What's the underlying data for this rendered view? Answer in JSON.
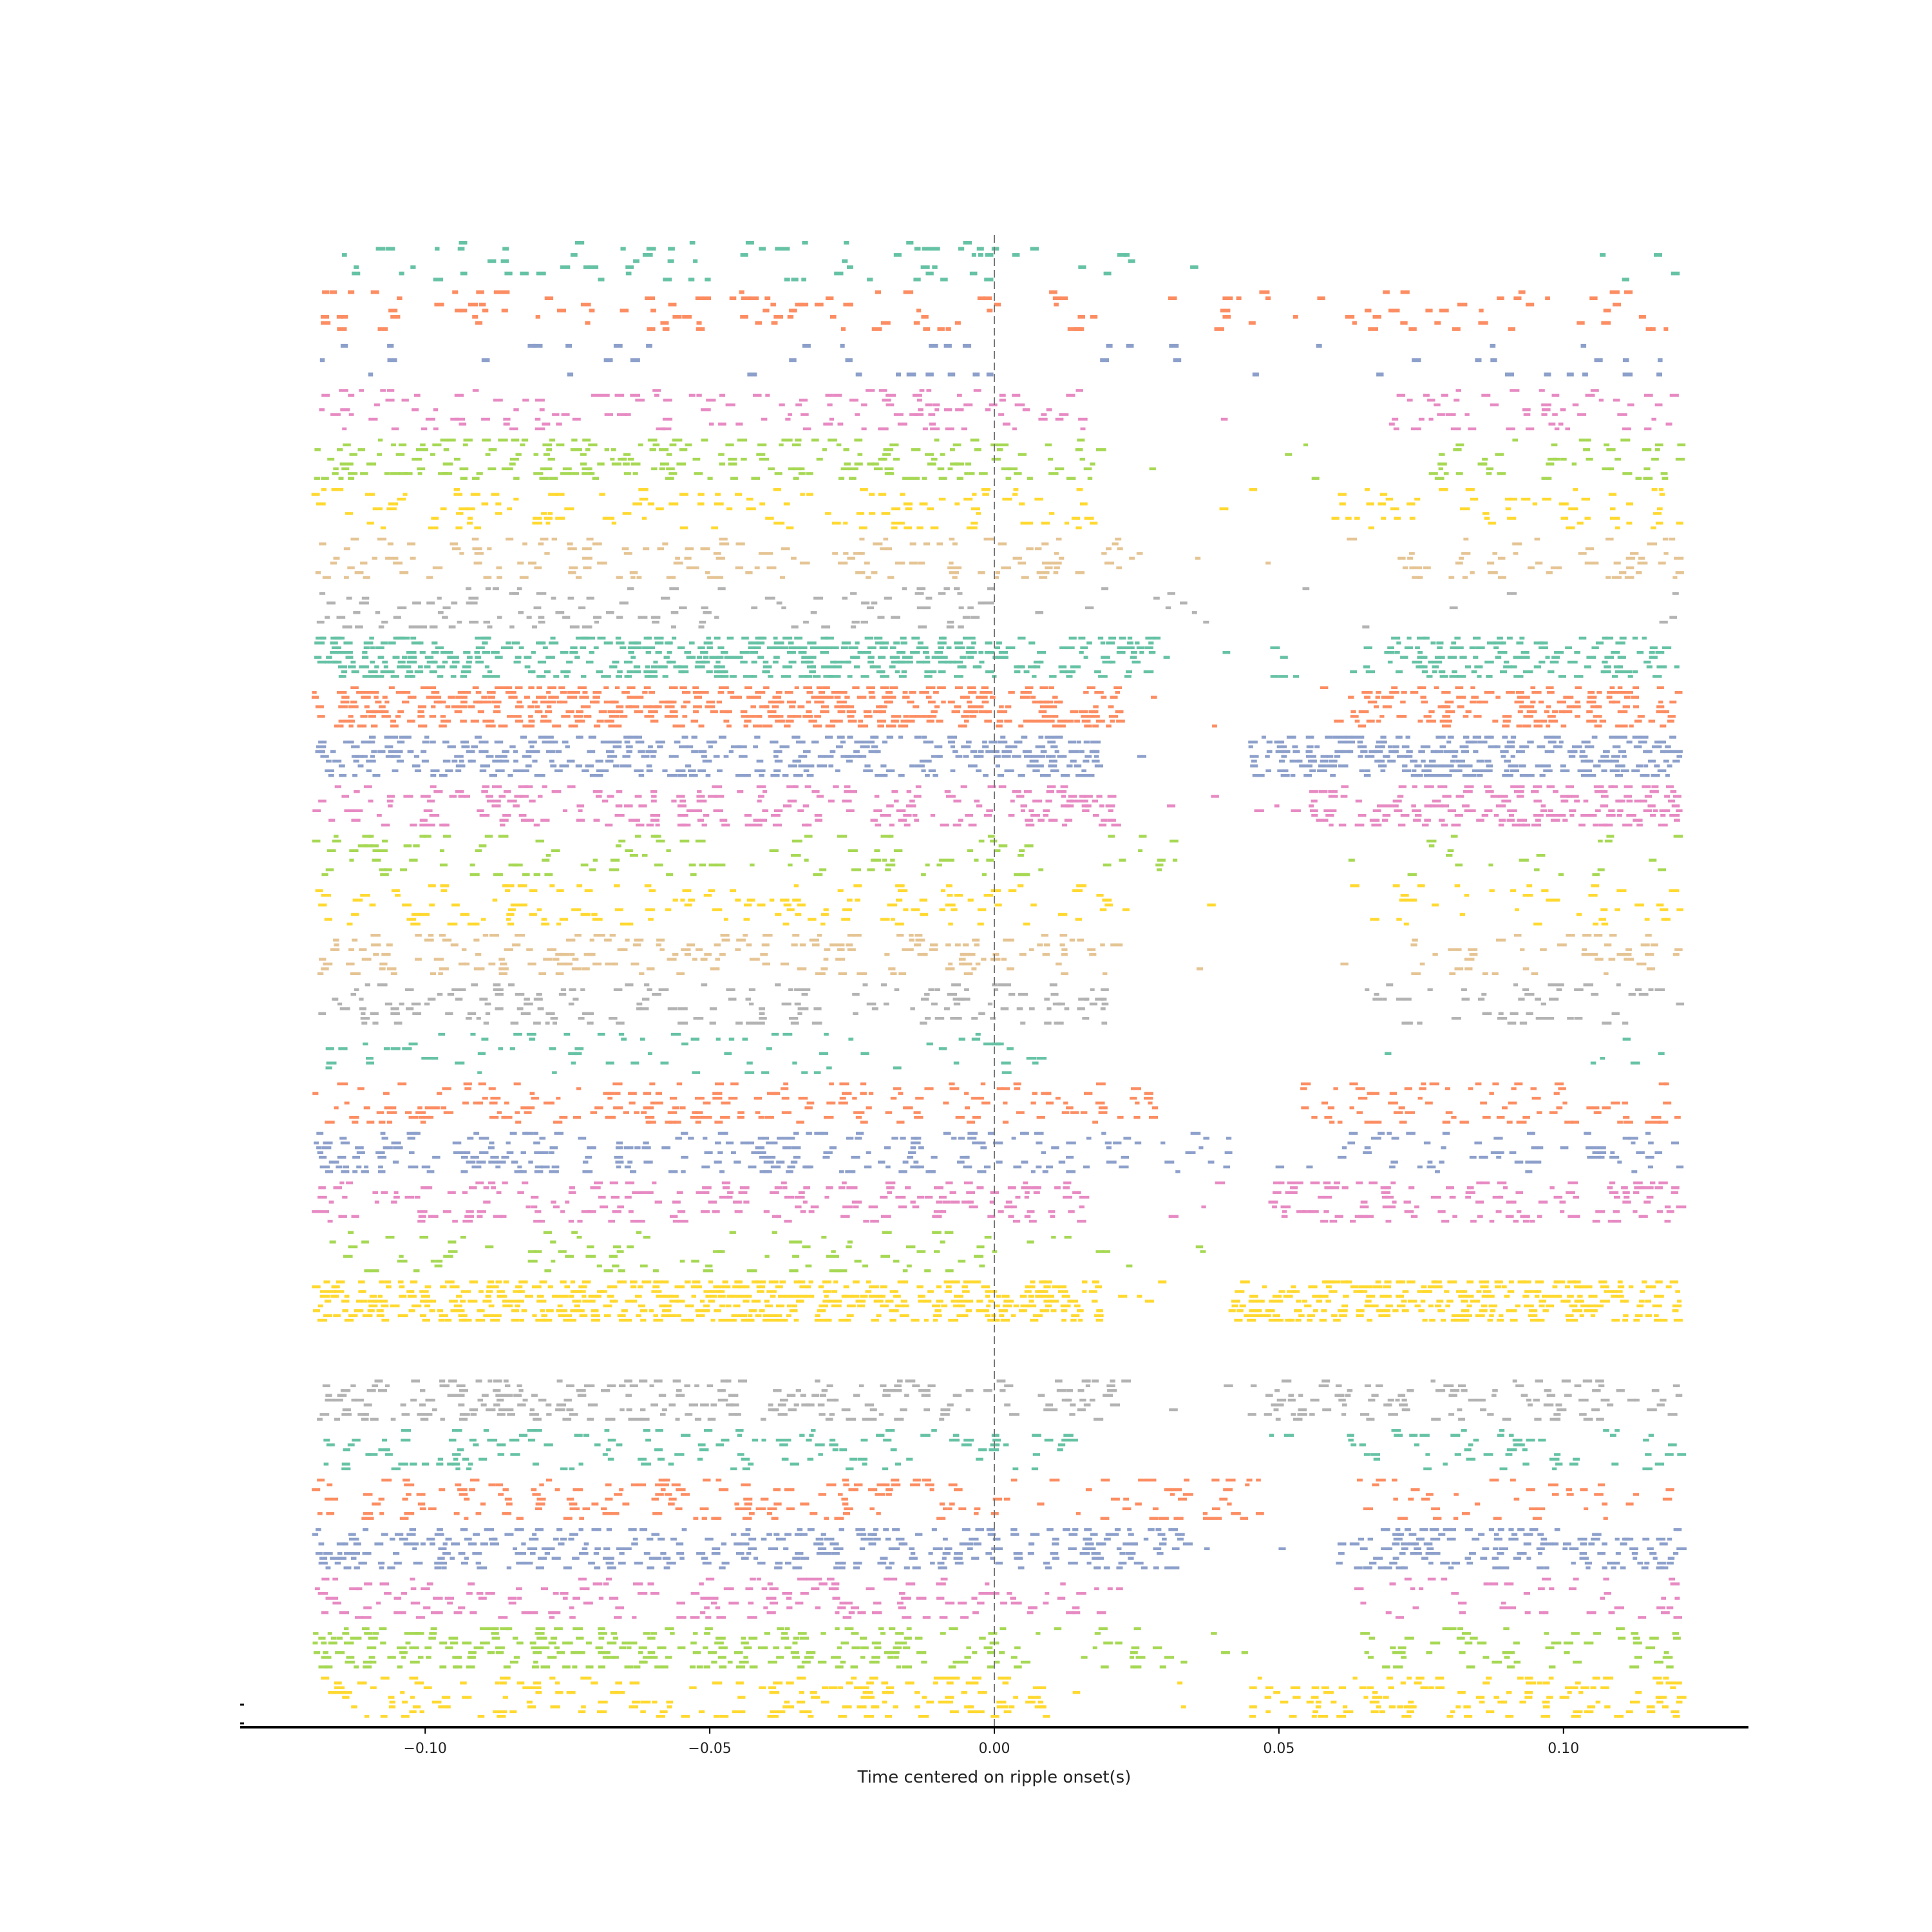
{
  "chart_data": {
    "type": "raster",
    "title": "",
    "xlabel": "Time centered on ripple onset(s)",
    "ylabel": "",
    "xlim": [
      -0.1325,
      0.1325
    ],
    "x_ticks": [
      -0.1,
      -0.05,
      0.0,
      0.05,
      0.1
    ],
    "x_tick_labels": [
      "−0.10",
      "−0.05",
      "0.00",
      "0.05",
      "0.10"
    ],
    "window": [
      -0.12,
      0.12
    ],
    "reference_line": {
      "x": 0.0,
      "style": "dashed",
      "color": "#777777"
    },
    "y_axis_visible": false,
    "grid": false,
    "legend": "none",
    "palette": [
      "#66c2a5",
      "#fc8d62",
      "#8da0cb",
      "#e78ac3",
      "#a6d854",
      "#ffd92f",
      "#e5c494",
      "#b3b3b3"
    ],
    "neurons": [
      {
        "color": "#66c2a5",
        "trials": 7,
        "rate_pre": 0.3,
        "rate_post": 0.1,
        "silence": [
          0.04,
          0.105
        ]
      },
      {
        "color": "#fc8d62",
        "trials": 7,
        "rate_pre": 0.35,
        "rate_post": 0.25,
        "silence": [
          0.018,
          0.038
        ]
      },
      {
        "color": "#8da0cb",
        "trials": 3,
        "rate_pre": 0.25,
        "rate_post": 0.2,
        "silence": [
          0.002,
          0.014
        ]
      },
      {
        "color": "#e78ac3",
        "trials": 9,
        "rate_pre": 0.45,
        "rate_post": 0.35,
        "silence": [
          0.018,
          0.068
        ]
      },
      {
        "color": "#a6d854",
        "trials": 9,
        "rate_pre": 0.7,
        "rate_post": 0.45,
        "silence": [
          0.018,
          0.075
        ]
      },
      {
        "color": "#ffd92f",
        "trials": 9,
        "rate_pre": 0.35,
        "rate_post": 0.4,
        "silence": [
          0.016,
          0.058
        ]
      },
      {
        "color": "#e5c494",
        "trials": 9,
        "rate_pre": 0.4,
        "rate_post": 0.45,
        "silence": [
          0.025,
          0.07
        ]
      },
      {
        "color": "#b3b3b3",
        "trials": 9,
        "rate_pre": 0.4,
        "rate_post": 0.15,
        "silence": [
          0.04,
          0.115
        ]
      },
      {
        "color": "#66c2a5",
        "trials": 9,
        "rate_pre": 1.2,
        "rate_post": 0.9,
        "silence": [
          0.03,
          0.068
        ]
      },
      {
        "color": "#fc8d62",
        "trials": 9,
        "rate_pre": 1.2,
        "rate_post": 0.95,
        "silence": [
          0.022,
          0.062
        ]
      },
      {
        "color": "#8da0cb",
        "trials": 9,
        "rate_pre": 0.9,
        "rate_post": 1.2,
        "silence": [
          0.018,
          0.044
        ]
      },
      {
        "color": "#e78ac3",
        "trials": 9,
        "rate_pre": 0.6,
        "rate_post": 0.85,
        "silence": [
          0.02,
          0.055
        ]
      },
      {
        "color": "#a6d854",
        "trials": 9,
        "rate_pre": 0.35,
        "rate_post": 0.2,
        "silence": [
          0.032,
          0.07
        ]
      },
      {
        "color": "#ffd92f",
        "trials": 9,
        "rate_pre": 0.35,
        "rate_post": 0.35,
        "silence": [
          0.02,
          0.062
        ]
      },
      {
        "color": "#e5c494",
        "trials": 9,
        "rate_pre": 0.55,
        "rate_post": 0.4,
        "silence": [
          0.02,
          0.07
        ]
      },
      {
        "color": "#b3b3b3",
        "trials": 9,
        "rate_pre": 0.45,
        "rate_post": 0.4,
        "silence": [
          0.02,
          0.064
        ]
      },
      {
        "color": "#66c2a5",
        "trials": 9,
        "rate_pre": 0.25,
        "rate_post": 0.1,
        "silence": [
          0.012,
          0.1
        ]
      },
      {
        "color": "#fc8d62",
        "trials": 9,
        "rate_pre": 0.55,
        "rate_post": 0.4,
        "silence": [
          0.028,
          0.052
        ]
      },
      {
        "color": "#8da0cb",
        "trials": 9,
        "rate_pre": 0.7,
        "rate_post": 0.4,
        "silence": [
          0.04,
          0.06
        ]
      },
      {
        "color": "#e78ac3",
        "trials": 9,
        "rate_pre": 0.5,
        "rate_post": 0.7,
        "silence": [
          0.015,
          0.048
        ]
      },
      {
        "color": "#a6d854",
        "trials": 9,
        "rate_pre": 0.3,
        "rate_post": 0.1,
        "silence": [
          0.038,
          0.12
        ]
      },
      {
        "color": "#ffd92f",
        "trials": 9,
        "rate_pre": 1.2,
        "rate_post": 1.1,
        "silence": [
          0.018,
          0.04
        ]
      },
      {
        "color": "#e5c494",
        "trials": 3,
        "rate_pre": 0.0,
        "rate_post": 0.0,
        "silence": [
          -0.12,
          0.12
        ]
      },
      {
        "color": "#b3b3b3",
        "trials": 9,
        "rate_pre": 0.6,
        "rate_post": 0.55,
        "silence": [
          0.02,
          0.044
        ]
      },
      {
        "color": "#66c2a5",
        "trials": 9,
        "rate_pre": 0.45,
        "rate_post": 0.35,
        "silence": [
          0.014,
          0.06
        ]
      },
      {
        "color": "#fc8d62",
        "trials": 9,
        "rate_pre": 0.45,
        "rate_post": 0.3,
        "silence": [
          0.046,
          0.062
        ]
      },
      {
        "color": "#8da0cb",
        "trials": 9,
        "rate_pre": 0.85,
        "rate_post": 0.8,
        "silence": [
          0.032,
          0.06
        ]
      },
      {
        "color": "#e78ac3",
        "trials": 9,
        "rate_pre": 0.45,
        "rate_post": 0.3,
        "silence": [
          0.018,
          0.062
        ]
      },
      {
        "color": "#a6d854",
        "trials": 9,
        "rate_pre": 0.8,
        "rate_post": 0.4,
        "silence": [
          0.03,
          0.062
        ]
      },
      {
        "color": "#ffd92f",
        "trials": 9,
        "rate_pre": 0.45,
        "rate_post": 0.55,
        "silence": [
          0.01,
          0.044
        ]
      }
    ]
  }
}
